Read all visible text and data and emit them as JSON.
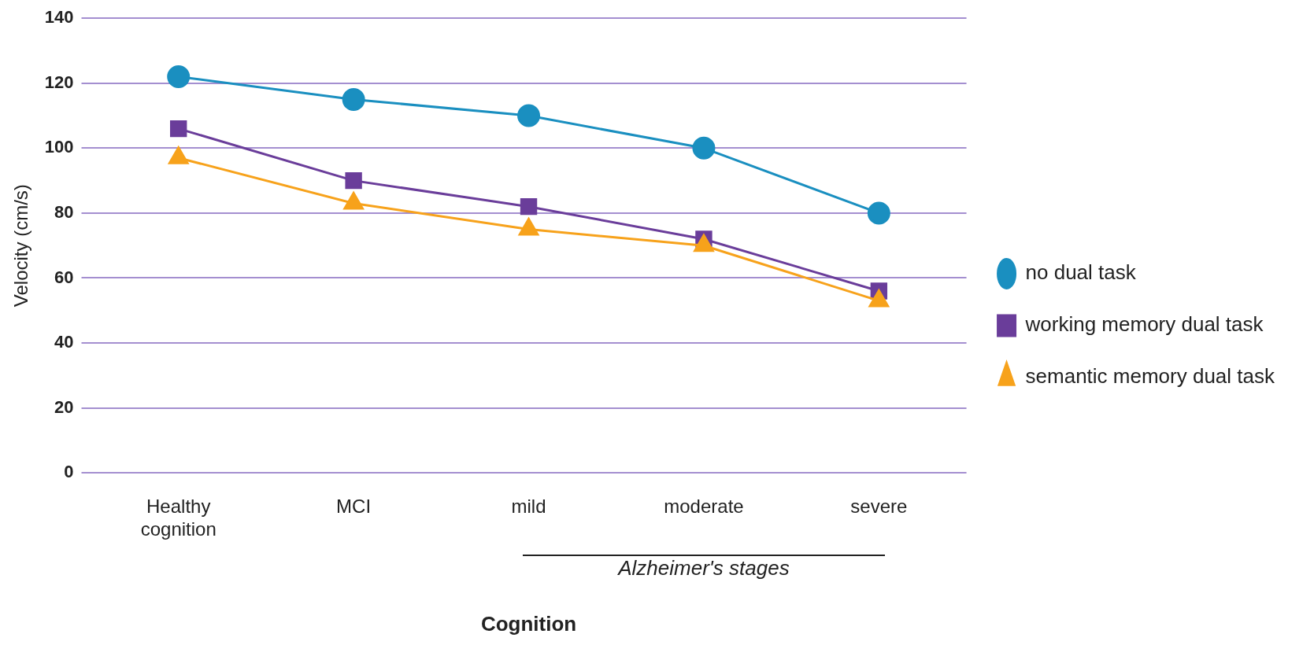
{
  "chart_data": {
    "type": "line",
    "xlabel": "Cognition",
    "ylabel": "Velocity (cm/s)",
    "categories": [
      "Healthy cognition",
      "MCI",
      "mild",
      "moderate",
      "severe"
    ],
    "series": [
      {
        "name": "no dual task",
        "color": "#1a8fc0",
        "marker": "circle",
        "values": [
          122,
          115,
          110,
          100,
          80
        ]
      },
      {
        "name": "working memory dual task",
        "color": "#6a3d9a",
        "marker": "square",
        "values": [
          106,
          90,
          82,
          72,
          56
        ]
      },
      {
        "name": "semantic memory dual task",
        "color": "#f7a21b",
        "marker": "triangle",
        "values": [
          97,
          83,
          75,
          70,
          53
        ]
      }
    ],
    "ylim": [
      0,
      140
    ],
    "yticks": [
      0,
      20,
      40,
      60,
      80,
      100,
      120,
      140
    ],
    "grid": "y",
    "legend": "right",
    "annotations": [
      "Alzheimer's stages"
    ]
  }
}
